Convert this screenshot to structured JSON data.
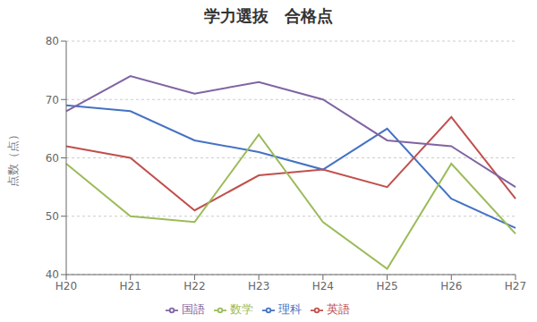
{
  "chart_data": {
    "type": "line",
    "title": "学力選抜　合格点",
    "categories": [
      "H20",
      "H21",
      "H22",
      "H23",
      "H24",
      "H25",
      "H26",
      "H27"
    ],
    "ylabel": "点数（点）",
    "ylim": [
      40,
      80
    ],
    "yticks": [
      40,
      50,
      60,
      70,
      80
    ],
    "series": [
      {
        "name": "理科",
        "color": "#4472C4",
        "values": [
          69,
          68,
          63,
          61,
          58,
          65,
          53,
          48
        ]
      },
      {
        "name": "英語",
        "color": "#C0504D",
        "values": [
          62,
          60,
          51,
          57,
          58,
          55,
          67,
          53
        ]
      },
      {
        "name": "数学",
        "color": "#9BBB59",
        "values": [
          59,
          50,
          49,
          64,
          49,
          41,
          59,
          47
        ]
      },
      {
        "name": "国語",
        "color": "#8064A2",
        "values": [
          68,
          74,
          71,
          73,
          70,
          63,
          62,
          55
        ]
      }
    ],
    "grid": true,
    "legend": "bottom"
  }
}
